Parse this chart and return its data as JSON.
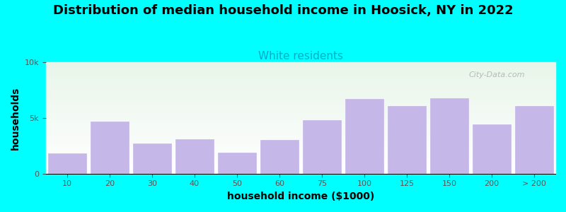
{
  "title": "Distribution of median household income in Hoosick, NY in 2022",
  "subtitle": "White residents",
  "xlabel": "household income ($1000)",
  "ylabel": "households",
  "background_color": "#00FFFF",
  "bar_color": "#c5b8e8",
  "bar_edge_color": "#c5b8e8",
  "categories": [
    "10",
    "20",
    "30",
    "40",
    "50",
    "60",
    "75",
    "100",
    "125",
    "150",
    "200",
    "> 200"
  ],
  "values": [
    1800,
    4700,
    2700,
    3100,
    1900,
    3000,
    4800,
    6700,
    6100,
    6800,
    4400,
    6100
  ],
  "ylim": [
    0,
    10000
  ],
  "ytick_labels": [
    "0",
    "5k",
    "10k"
  ],
  "ytick_values": [
    0,
    5000,
    10000
  ],
  "title_fontsize": 13,
  "subtitle_fontsize": 11,
  "subtitle_color": "#00AACC",
  "axis_label_fontsize": 10,
  "tick_fontsize": 8,
  "watermark": "City-Data.com"
}
